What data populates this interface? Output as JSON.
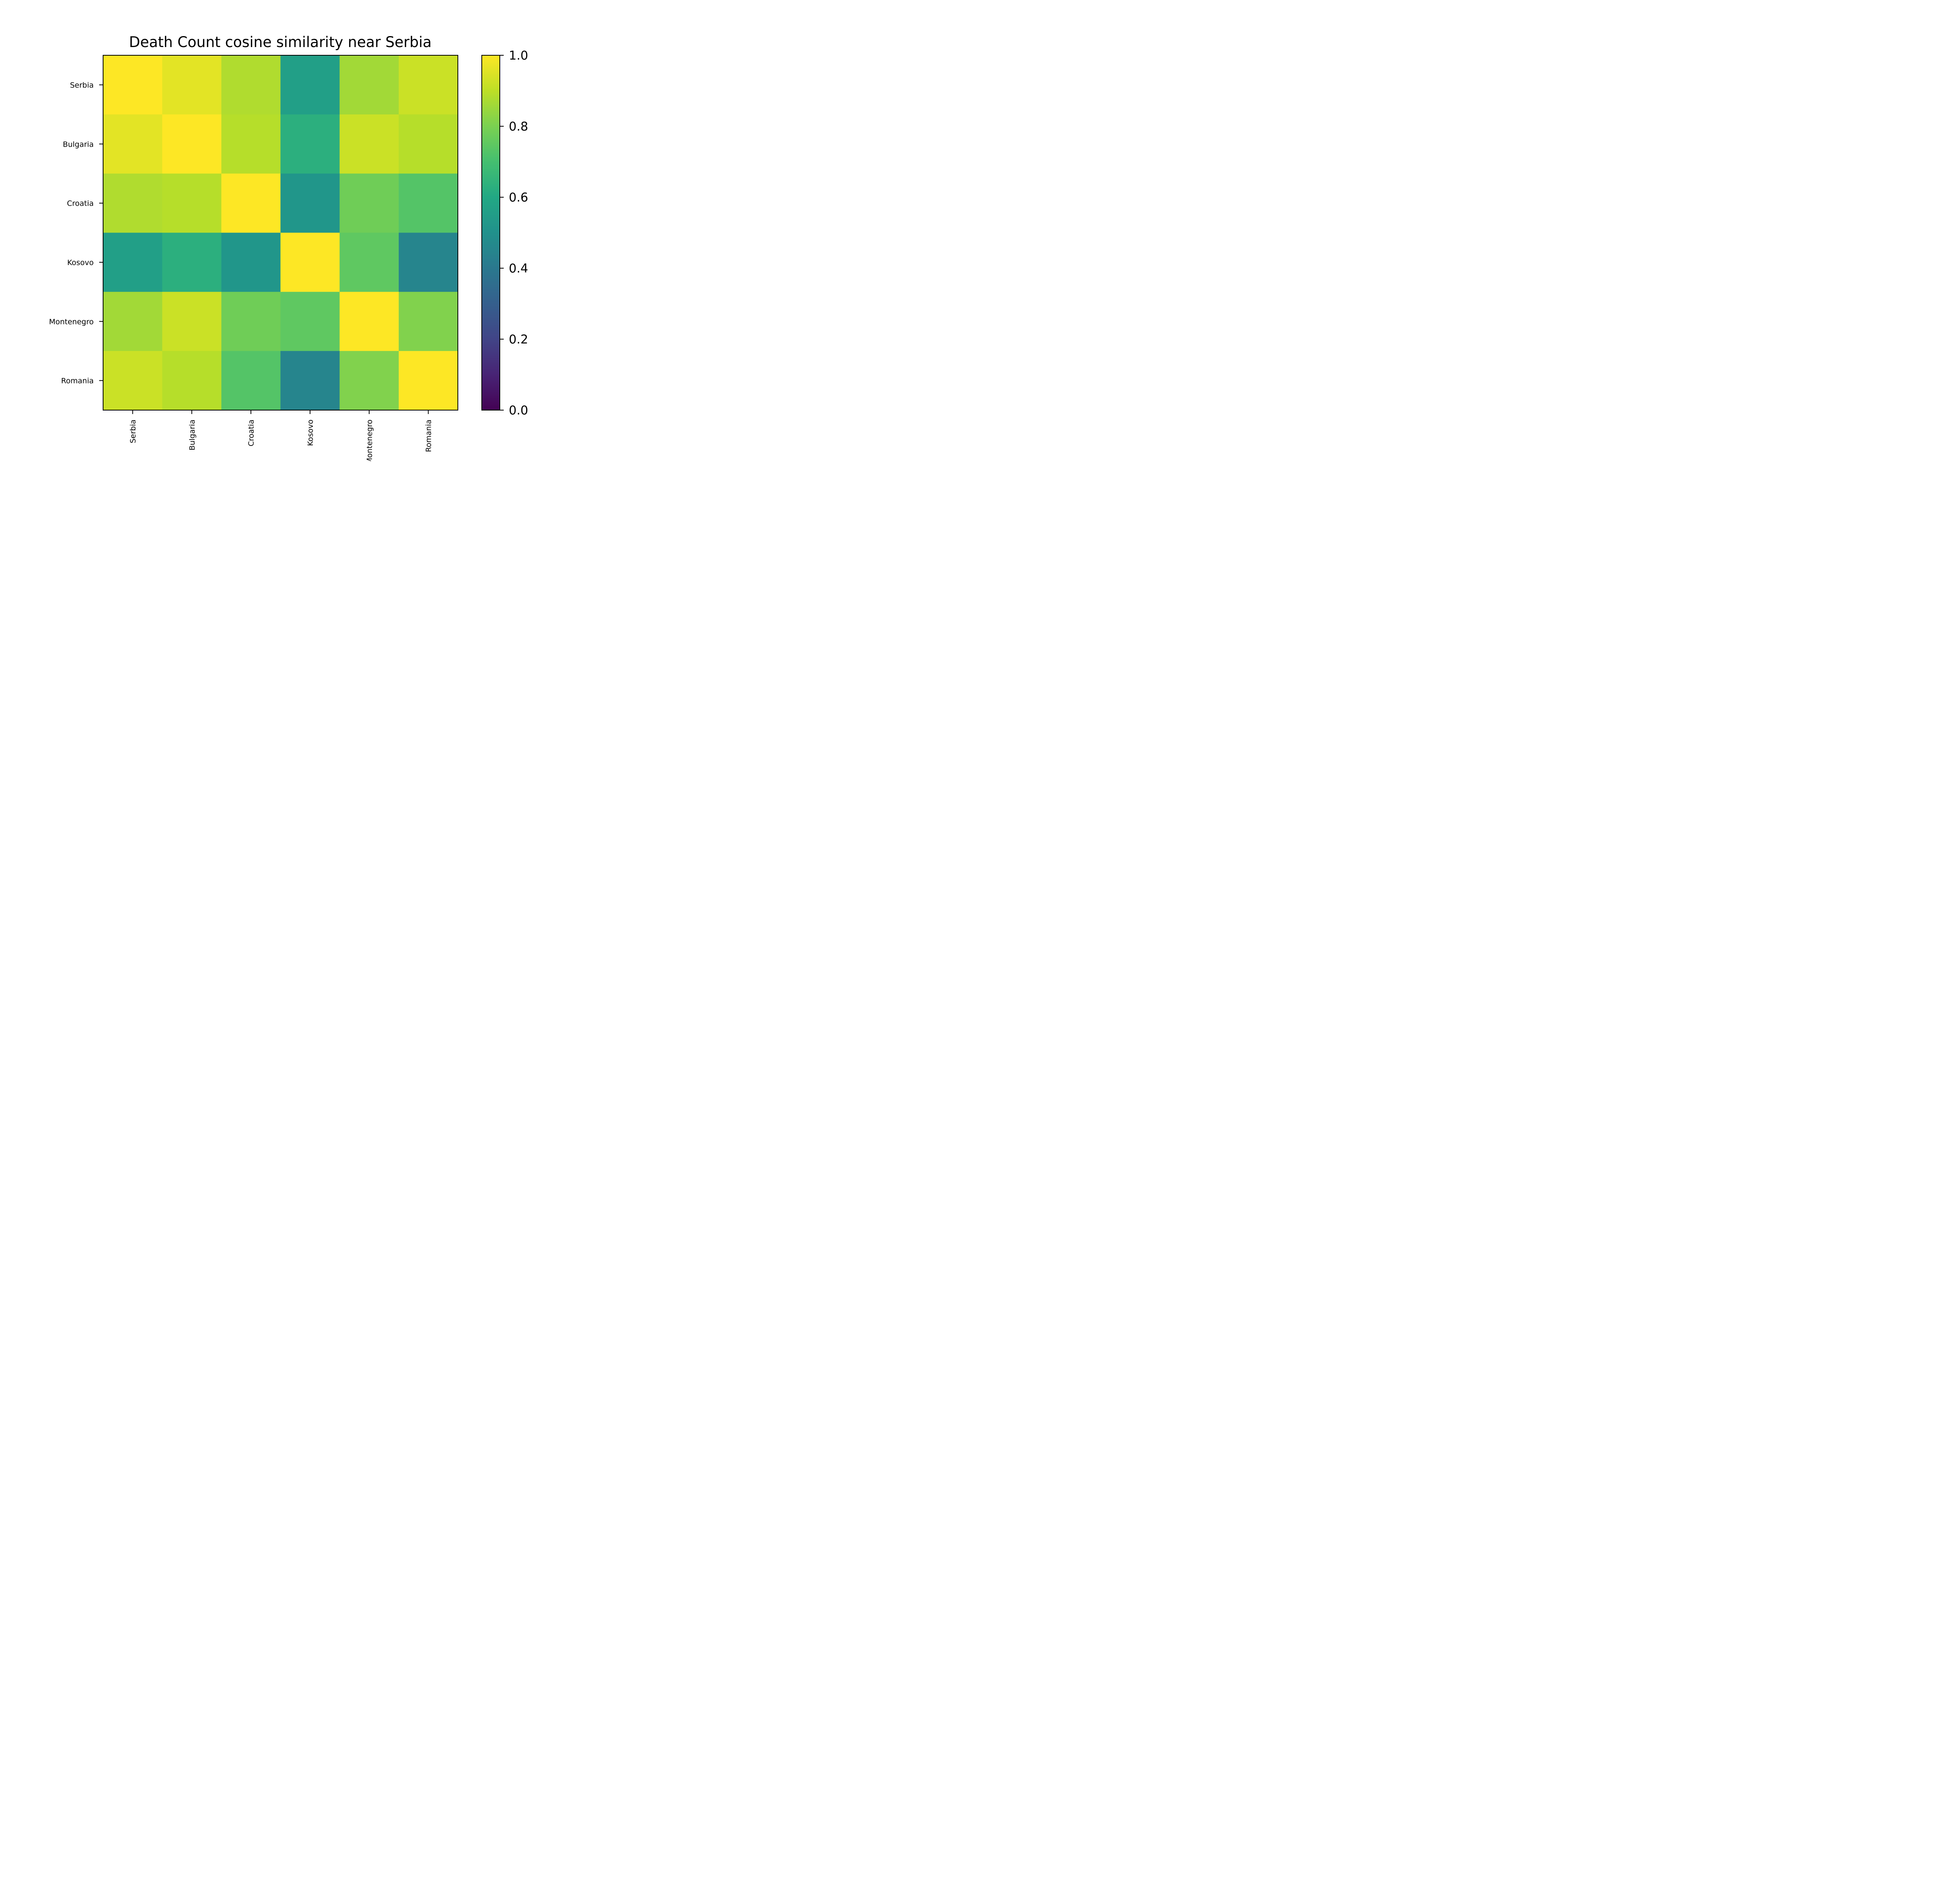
{
  "chart_data": {
    "type": "heatmap",
    "title": "Death Count cosine similarity near Serbia",
    "rows": [
      "Serbia",
      "Bulgaria",
      "Croatia",
      "Kosovo",
      "Montenegro",
      "Romania"
    ],
    "columns": [
      "Serbia",
      "Bulgaria",
      "Croatia",
      "Kosovo",
      "Montenegro",
      "Romania"
    ],
    "values": [
      [
        1.0,
        0.96,
        0.88,
        0.56,
        0.86,
        0.92
      ],
      [
        0.96,
        1.0,
        0.89,
        0.63,
        0.92,
        0.89
      ],
      [
        0.88,
        0.89,
        1.0,
        0.52,
        0.78,
        0.73
      ],
      [
        0.56,
        0.63,
        0.52,
        1.0,
        0.75,
        0.45
      ],
      [
        0.86,
        0.92,
        0.78,
        0.75,
        1.0,
        0.81
      ],
      [
        0.92,
        0.89,
        0.73,
        0.45,
        0.81,
        1.0
      ]
    ],
    "colorbar": {
      "range": [
        0.0,
        1.0
      ],
      "ticks": [
        "0.0",
        "0.2",
        "0.4",
        "0.6",
        "0.8",
        "1.0"
      ],
      "colormap": "viridis"
    }
  }
}
